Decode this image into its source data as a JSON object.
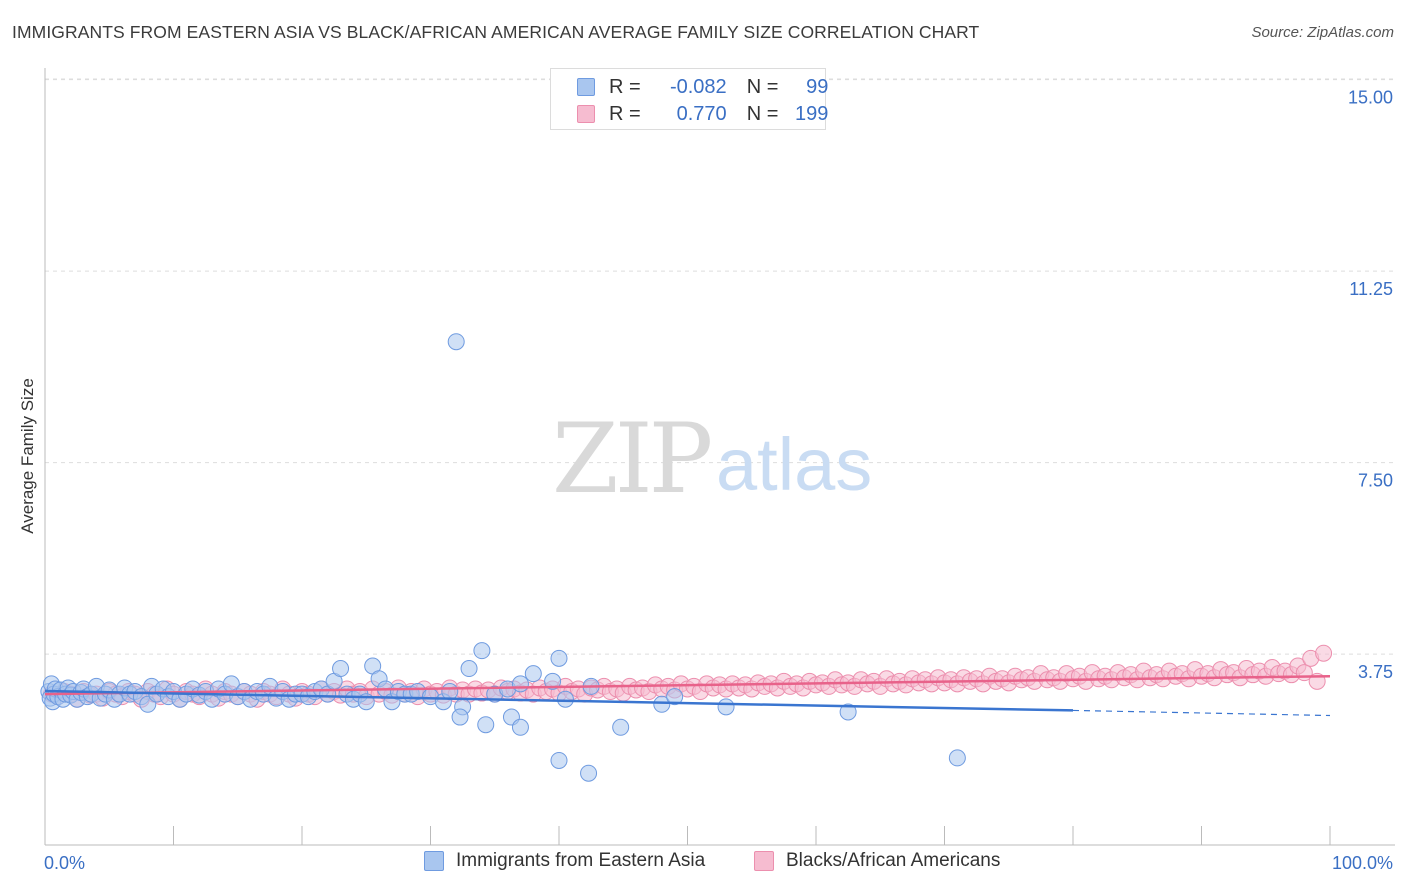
{
  "header": {
    "title": "IMMIGRANTS FROM EASTERN ASIA VS BLACK/AFRICAN AMERICAN AVERAGE FAMILY SIZE CORRELATION CHART",
    "source": "Source: ZipAtlas.com"
  },
  "watermark": {
    "zip": "ZIP",
    "atlas": "atlas"
  },
  "legend": {
    "series1": {
      "r_label": "R =",
      "r_value": "-0.082",
      "n_label": "N =",
      "n_value": "99"
    },
    "series2": {
      "r_label": "R =",
      "r_value": "0.770",
      "n_label": "N =",
      "n_value": "199"
    }
  },
  "colors": {
    "blue_fill": "#a9c6ef",
    "blue_stroke": "#6f9be0",
    "blue_line": "#3a75d0",
    "pink_fill": "#f6bcd0",
    "pink_stroke": "#ec8fae",
    "pink_line": "#e8628a",
    "tick_label": "#3a6fc4",
    "grid": "#dddddd"
  },
  "chart_data": {
    "type": "scatter",
    "title": "IMMIGRANTS FROM EASTERN ASIA VS BLACK/AFRICAN AMERICAN AVERAGE FAMILY SIZE CORRELATION CHART",
    "xlabel": "",
    "ylabel": "Average Family Size",
    "xlim": [
      0,
      100
    ],
    "ylim": [
      0,
      15.5
    ],
    "y_ticks": [
      3.75,
      7.5,
      11.25,
      15.0
    ],
    "y_tick_labels": [
      "3.75",
      "7.50",
      "11.25",
      "15.00"
    ],
    "x_tick_labels": [
      "0.0%",
      "100.0%"
    ],
    "grid": true,
    "series": [
      {
        "name": "Immigrants from Eastern Asia",
        "color": "#a9c6ef",
        "trend": {
          "x": [
            0,
            80
          ],
          "y": [
            3.36,
            2.98
          ],
          "dashed_x": [
            80,
            100
          ],
          "dashed_y": [
            2.98,
            2.88
          ]
        },
        "points": [
          [
            0.3,
            3.35
          ],
          [
            0.4,
            3.22
          ],
          [
            0.5,
            3.5
          ],
          [
            0.6,
            3.15
          ],
          [
            0.7,
            3.3
          ],
          [
            0.8,
            3.4
          ],
          [
            1.0,
            3.25
          ],
          [
            1.2,
            3.38
          ],
          [
            1.4,
            3.2
          ],
          [
            1.6,
            3.3
          ],
          [
            1.8,
            3.42
          ],
          [
            2.0,
            3.28
          ],
          [
            2.2,
            3.35
          ],
          [
            2.5,
            3.2
          ],
          [
            2.8,
            3.33
          ],
          [
            3.0,
            3.4
          ],
          [
            3.3,
            3.25
          ],
          [
            3.6,
            3.3
          ],
          [
            4.0,
            3.45
          ],
          [
            4.3,
            3.22
          ],
          [
            4.7,
            3.3
          ],
          [
            5.0,
            3.38
          ],
          [
            5.4,
            3.2
          ],
          [
            5.8,
            3.3
          ],
          [
            6.2,
            3.42
          ],
          [
            6.6,
            3.3
          ],
          [
            7.0,
            3.35
          ],
          [
            7.5,
            3.25
          ],
          [
            8.0,
            3.1
          ],
          [
            8.3,
            3.45
          ],
          [
            8.7,
            3.3
          ],
          [
            9.2,
            3.4
          ],
          [
            9.6,
            3.25
          ],
          [
            10.0,
            3.35
          ],
          [
            10.5,
            3.2
          ],
          [
            11.0,
            3.3
          ],
          [
            11.5,
            3.4
          ],
          [
            12.0,
            3.28
          ],
          [
            12.5,
            3.35
          ],
          [
            13.0,
            3.2
          ],
          [
            13.5,
            3.4
          ],
          [
            14.0,
            3.3
          ],
          [
            14.5,
            3.5
          ],
          [
            15.0,
            3.25
          ],
          [
            15.5,
            3.35
          ],
          [
            16.0,
            3.2
          ],
          [
            16.5,
            3.35
          ],
          [
            17.0,
            3.3
          ],
          [
            17.5,
            3.45
          ],
          [
            18.0,
            3.22
          ],
          [
            18.5,
            3.35
          ],
          [
            19.0,
            3.2
          ],
          [
            19.5,
            3.3
          ],
          [
            20.0,
            3.3
          ],
          [
            20.5,
            3.25
          ],
          [
            21.0,
            3.35
          ],
          [
            21.5,
            3.4
          ],
          [
            22.0,
            3.3
          ],
          [
            22.5,
            3.55
          ],
          [
            23.0,
            3.8
          ],
          [
            23.5,
            3.3
          ],
          [
            24.0,
            3.2
          ],
          [
            24.5,
            3.3
          ],
          [
            25.0,
            3.15
          ],
          [
            25.5,
            3.85
          ],
          [
            26.0,
            3.6
          ],
          [
            26.5,
            3.4
          ],
          [
            27.0,
            3.15
          ],
          [
            27.5,
            3.35
          ],
          [
            28.0,
            3.3
          ],
          [
            28.5,
            3.3
          ],
          [
            29.0,
            3.35
          ],
          [
            30.0,
            3.25
          ],
          [
            31.0,
            3.15
          ],
          [
            31.5,
            3.35
          ],
          [
            32.5,
            3.05
          ],
          [
            33.0,
            3.8
          ],
          [
            34.0,
            4.15
          ],
          [
            35.0,
            3.3
          ],
          [
            36.0,
            3.4
          ],
          [
            37.0,
            3.5
          ],
          [
            38.0,
            3.7
          ],
          [
            39.5,
            3.55
          ],
          [
            40.0,
            4.0
          ],
          [
            40.5,
            3.2
          ],
          [
            42.5,
            3.45
          ],
          [
            32.0,
            10.2
          ],
          [
            32.3,
            2.85
          ],
          [
            34.3,
            2.7
          ],
          [
            36.3,
            2.85
          ],
          [
            37.0,
            2.65
          ],
          [
            40.0,
            2.0
          ],
          [
            42.3,
            1.75
          ],
          [
            44.8,
            2.65
          ],
          [
            48.0,
            3.1
          ],
          [
            49.0,
            3.25
          ],
          [
            53.0,
            3.05
          ],
          [
            62.5,
            2.95
          ],
          [
            71.0,
            2.05
          ]
        ]
      },
      {
        "name": "Blacks/African Americans",
        "color": "#f6bcd0",
        "trend": {
          "x": [
            0,
            100
          ],
          "y": [
            3.3,
            3.65
          ]
        },
        "points": [
          [
            0.5,
            3.3
          ],
          [
            1.0,
            3.25
          ],
          [
            1.5,
            3.35
          ],
          [
            2.0,
            3.3
          ],
          [
            2.5,
            3.2
          ],
          [
            3.0,
            3.35
          ],
          [
            3.5,
            3.28
          ],
          [
            4.0,
            3.3
          ],
          [
            4.5,
            3.22
          ],
          [
            5.0,
            3.35
          ],
          [
            5.5,
            3.3
          ],
          [
            6.0,
            3.25
          ],
          [
            6.5,
            3.35
          ],
          [
            7.0,
            3.3
          ],
          [
            7.5,
            3.2
          ],
          [
            8.0,
            3.35
          ],
          [
            8.5,
            3.3
          ],
          [
            9.0,
            3.25
          ],
          [
            9.5,
            3.4
          ],
          [
            10.0,
            3.3
          ],
          [
            10.5,
            3.2
          ],
          [
            11.0,
            3.35
          ],
          [
            11.5,
            3.3
          ],
          [
            12.0,
            3.25
          ],
          [
            12.5,
            3.4
          ],
          [
            13.0,
            3.3
          ],
          [
            13.5,
            3.22
          ],
          [
            14.0,
            3.35
          ],
          [
            14.5,
            3.3
          ],
          [
            15.0,
            3.25
          ],
          [
            15.5,
            3.35
          ],
          [
            16.0,
            3.3
          ],
          [
            16.5,
            3.2
          ],
          [
            17.0,
            3.35
          ],
          [
            17.5,
            3.3
          ],
          [
            18.0,
            3.25
          ],
          [
            18.5,
            3.4
          ],
          [
            19.0,
            3.3
          ],
          [
            19.5,
            3.22
          ],
          [
            20.0,
            3.35
          ],
          [
            20.5,
            3.3
          ],
          [
            21.0,
            3.25
          ],
          [
            21.5,
            3.4
          ],
          [
            22.0,
            3.3
          ],
          [
            22.5,
            3.35
          ],
          [
            23.0,
            3.28
          ],
          [
            23.5,
            3.4
          ],
          [
            24.0,
            3.3
          ],
          [
            24.5,
            3.35
          ],
          [
            25.0,
            3.25
          ],
          [
            25.5,
            3.4
          ],
          [
            26.0,
            3.3
          ],
          [
            26.5,
            3.35
          ],
          [
            27.0,
            3.28
          ],
          [
            27.5,
            3.42
          ],
          [
            28.0,
            3.3
          ],
          [
            28.5,
            3.35
          ],
          [
            29.0,
            3.25
          ],
          [
            29.5,
            3.4
          ],
          [
            30.0,
            3.3
          ],
          [
            30.5,
            3.35
          ],
          [
            31.0,
            3.28
          ],
          [
            31.5,
            3.42
          ],
          [
            32.0,
            3.3
          ],
          [
            32.5,
            3.38
          ],
          [
            33.0,
            3.3
          ],
          [
            33.5,
            3.4
          ],
          [
            34.0,
            3.32
          ],
          [
            34.5,
            3.38
          ],
          [
            35.0,
            3.3
          ],
          [
            35.5,
            3.42
          ],
          [
            36.0,
            3.35
          ],
          [
            36.5,
            3.4
          ],
          [
            37.0,
            3.32
          ],
          [
            37.5,
            3.38
          ],
          [
            38.0,
            3.3
          ],
          [
            38.5,
            3.42
          ],
          [
            39.0,
            3.35
          ],
          [
            39.5,
            3.4
          ],
          [
            40.0,
            3.32
          ],
          [
            40.5,
            3.45
          ],
          [
            41.0,
            3.35
          ],
          [
            41.5,
            3.4
          ],
          [
            42.0,
            3.3
          ],
          [
            42.5,
            3.42
          ],
          [
            43.0,
            3.38
          ],
          [
            43.5,
            3.45
          ],
          [
            44.0,
            3.35
          ],
          [
            44.5,
            3.4
          ],
          [
            45.0,
            3.32
          ],
          [
            45.5,
            3.45
          ],
          [
            46.0,
            3.38
          ],
          [
            46.5,
            3.42
          ],
          [
            47.0,
            3.35
          ],
          [
            47.5,
            3.48
          ],
          [
            48.0,
            3.4
          ],
          [
            48.5,
            3.45
          ],
          [
            49.0,
            3.38
          ],
          [
            49.5,
            3.5
          ],
          [
            50.0,
            3.4
          ],
          [
            50.5,
            3.45
          ],
          [
            51.0,
            3.35
          ],
          [
            51.5,
            3.5
          ],
          [
            52.0,
            3.42
          ],
          [
            52.5,
            3.48
          ],
          [
            53.0,
            3.4
          ],
          [
            53.5,
            3.5
          ],
          [
            54.0,
            3.42
          ],
          [
            54.5,
            3.48
          ],
          [
            55.0,
            3.4
          ],
          [
            55.5,
            3.52
          ],
          [
            56.0,
            3.45
          ],
          [
            56.5,
            3.5
          ],
          [
            57.0,
            3.42
          ],
          [
            57.5,
            3.55
          ],
          [
            58.0,
            3.45
          ],
          [
            58.5,
            3.5
          ],
          [
            59.0,
            3.42
          ],
          [
            59.5,
            3.55
          ],
          [
            60.0,
            3.48
          ],
          [
            60.5,
            3.52
          ],
          [
            61.0,
            3.45
          ],
          [
            61.5,
            3.58
          ],
          [
            62.0,
            3.48
          ],
          [
            62.5,
            3.52
          ],
          [
            63.0,
            3.45
          ],
          [
            63.5,
            3.58
          ],
          [
            64.0,
            3.5
          ],
          [
            64.5,
            3.55
          ],
          [
            65.0,
            3.45
          ],
          [
            65.5,
            3.6
          ],
          [
            66.0,
            3.5
          ],
          [
            66.5,
            3.55
          ],
          [
            67.0,
            3.48
          ],
          [
            67.5,
            3.6
          ],
          [
            68.0,
            3.52
          ],
          [
            68.5,
            3.58
          ],
          [
            69.0,
            3.5
          ],
          [
            69.5,
            3.62
          ],
          [
            70.0,
            3.52
          ],
          [
            70.5,
            3.58
          ],
          [
            71.0,
            3.5
          ],
          [
            71.5,
            3.62
          ],
          [
            72.0,
            3.55
          ],
          [
            72.5,
            3.6
          ],
          [
            73.0,
            3.5
          ],
          [
            73.5,
            3.65
          ],
          [
            74.0,
            3.55
          ],
          [
            74.5,
            3.6
          ],
          [
            75.0,
            3.52
          ],
          [
            75.5,
            3.65
          ],
          [
            76.0,
            3.58
          ],
          [
            76.5,
            3.62
          ],
          [
            77.0,
            3.55
          ],
          [
            77.5,
            3.7
          ],
          [
            78.0,
            3.58
          ],
          [
            78.5,
            3.62
          ],
          [
            79.0,
            3.55
          ],
          [
            79.5,
            3.7
          ],
          [
            80.0,
            3.6
          ],
          [
            80.5,
            3.65
          ],
          [
            81.0,
            3.55
          ],
          [
            81.5,
            3.72
          ],
          [
            82.0,
            3.6
          ],
          [
            82.5,
            3.65
          ],
          [
            83.0,
            3.58
          ],
          [
            83.5,
            3.72
          ],
          [
            84.0,
            3.62
          ],
          [
            84.5,
            3.68
          ],
          [
            85.0,
            3.58
          ],
          [
            85.5,
            3.75
          ],
          [
            86.0,
            3.62
          ],
          [
            86.5,
            3.68
          ],
          [
            87.0,
            3.6
          ],
          [
            87.5,
            3.75
          ],
          [
            88.0,
            3.65
          ],
          [
            88.5,
            3.7
          ],
          [
            89.0,
            3.6
          ],
          [
            89.5,
            3.78
          ],
          [
            90.0,
            3.65
          ],
          [
            90.5,
            3.7
          ],
          [
            91.0,
            3.62
          ],
          [
            91.5,
            3.78
          ],
          [
            92.0,
            3.68
          ],
          [
            92.5,
            3.72
          ],
          [
            93.0,
            3.62
          ],
          [
            93.5,
            3.8
          ],
          [
            94.0,
            3.68
          ],
          [
            94.5,
            3.75
          ],
          [
            95.0,
            3.65
          ],
          [
            95.5,
            3.82
          ],
          [
            96.0,
            3.7
          ],
          [
            96.5,
            3.75
          ],
          [
            97.0,
            3.68
          ],
          [
            97.5,
            3.85
          ],
          [
            98.0,
            3.72
          ],
          [
            98.5,
            4.0
          ],
          [
            99.0,
            3.55
          ],
          [
            99.5,
            4.1
          ]
        ]
      }
    ]
  },
  "bottom_legend": {
    "series1": "Immigrants from Eastern Asia",
    "series2": "Blacks/African Americans"
  }
}
